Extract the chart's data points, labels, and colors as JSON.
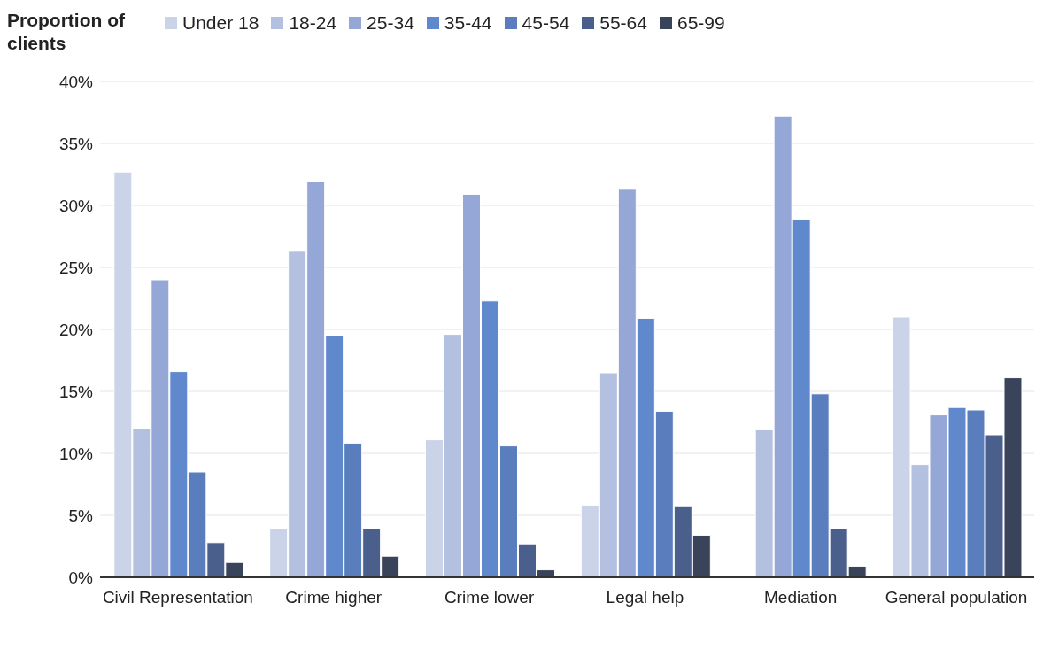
{
  "chart_data": {
    "type": "bar",
    "ylabel": "Proportion of clients",
    "categories": [
      "Civil Representation",
      "Crime higher",
      "Crime lower",
      "Legal help",
      "Mediation",
      "General population"
    ],
    "series": [
      {
        "name": "Under 18",
        "color": "#cad3e8",
        "values": [
          32.7,
          3.9,
          11.1,
          5.8,
          null,
          21.0
        ]
      },
      {
        "name": "18-24",
        "color": "#b3c0e0",
        "values": [
          12.0,
          26.3,
          19.6,
          16.5,
          11.9,
          9.1
        ]
      },
      {
        "name": "25-34",
        "color": "#94a7d6",
        "values": [
          24.0,
          31.9,
          30.9,
          31.3,
          37.2,
          13.1
        ]
      },
      {
        "name": "35-44",
        "color": "#6088cc",
        "values": [
          16.6,
          19.5,
          22.3,
          20.9,
          28.9,
          13.7
        ]
      },
      {
        "name": "45-54",
        "color": "#5a7ebd",
        "values": [
          8.5,
          10.8,
          10.6,
          13.4,
          14.8,
          13.5
        ]
      },
      {
        "name": "55-64",
        "color": "#4a5f8c",
        "values": [
          2.8,
          3.9,
          2.7,
          5.7,
          3.9,
          11.5
        ]
      },
      {
        "name": "65-99",
        "color": "#39435a",
        "values": [
          1.2,
          1.7,
          0.6,
          3.4,
          0.9,
          16.1
        ]
      }
    ],
    "ylim": [
      0,
      40
    ],
    "yticks": [
      {
        "value": 0,
        "label": "0%"
      },
      {
        "value": 5,
        "label": "5%"
      },
      {
        "value": 10,
        "label": "10%"
      },
      {
        "value": 15,
        "label": "15%"
      },
      {
        "value": 20,
        "label": "20%"
      },
      {
        "value": 25,
        "label": "25%"
      },
      {
        "value": 30,
        "label": "30%"
      },
      {
        "value": 35,
        "label": "35%"
      },
      {
        "value": 40,
        "label": "40%"
      }
    ],
    "grid": "y",
    "legend": "top"
  }
}
